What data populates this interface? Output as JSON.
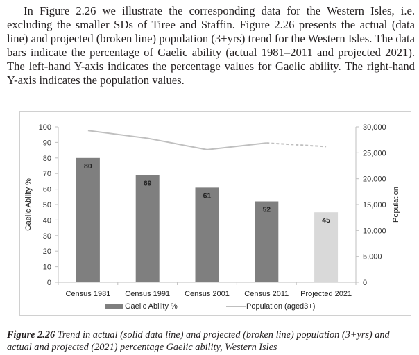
{
  "paragraph": {
    "line1": "In Figure 2.26 we illustrate the corresponding data for the Western Isles, i.e.",
    "line2": "excluding the smaller SDs of Tiree and Staffin. Figure 2.26 presents the actual (data",
    "line3": "line) and projected (broken line) population (3+yrs) trend for the Western Isles. The",
    "line4": "data bars indicate the percentage of Gaelic ability (actual 1981–2011 and projected",
    "line5": "2021). The left-hand Y-axis indicates the percentage values for Gaelic ability. The",
    "line6": "right-hand Y-axis indicates the population values."
  },
  "caption": {
    "label": "Figure 2.26",
    "line1": "Trend in actual (solid data line) and projected (broken line) population (3+yrs) and",
    "line2": "actual and projected (2021) percentage Gaelic ability, Western Isles"
  },
  "chart_data": {
    "type": "bar",
    "categories": [
      "Census 1981",
      "Census 1991",
      "Census 2001",
      "Census 2011",
      "Projected 2021"
    ],
    "ylabel": "Gaelic Ability %",
    "y2label": "Population",
    "ylim": [
      0,
      100
    ],
    "yticks": [
      0,
      10,
      20,
      30,
      40,
      50,
      60,
      70,
      80,
      90,
      100
    ],
    "y2lim": [
      0,
      30000
    ],
    "y2ticks": [
      "0",
      "5,000",
      "10,000",
      "15,000",
      "20,000",
      "25,000",
      "30,000"
    ],
    "y2tick_values": [
      0,
      5000,
      10000,
      15000,
      20000,
      25000,
      30000
    ],
    "grid": false,
    "legend_position": "bottom",
    "series": [
      {
        "name": "Gaelic Ability %",
        "kind": "bar",
        "values": [
          80,
          69,
          61,
          52,
          45
        ],
        "labels": [
          "80",
          "69",
          "61",
          "52",
          "45"
        ],
        "colors": [
          "#7f7f7f",
          "#7f7f7f",
          "#7f7f7f",
          "#7f7f7f",
          "#d9d9d9"
        ]
      },
      {
        "name": "Population (aged3+)",
        "kind": "line",
        "axis": "right",
        "values": [
          29300,
          27800,
          25600,
          26900,
          26200
        ],
        "actual_points": 4,
        "color": "#bfbfbf"
      }
    ]
  }
}
